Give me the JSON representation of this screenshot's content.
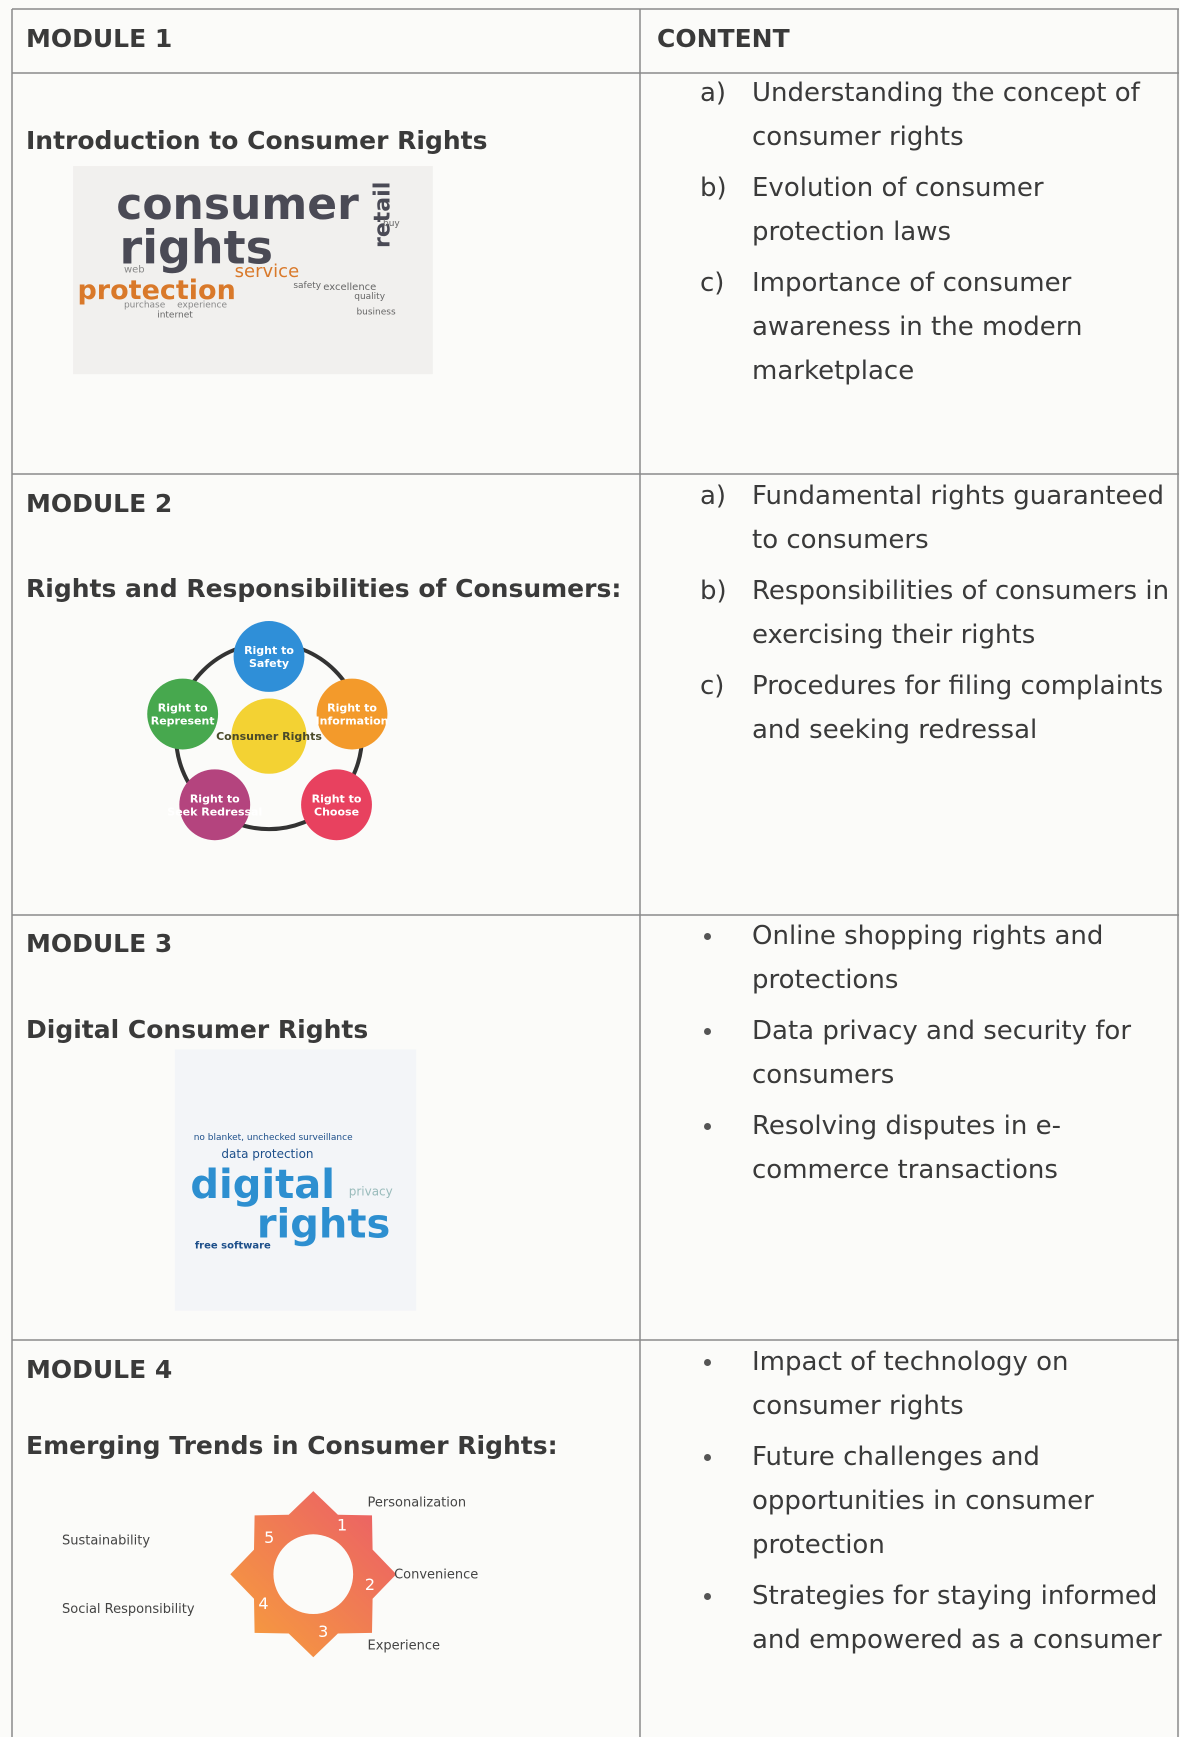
{
  "header": {
    "module": "MODULE 1",
    "content": "CONTENT"
  },
  "modules": [
    {
      "heading": "Introduction to Consumer Rights",
      "image_words": [
        "consumer",
        "rights",
        "protection",
        "service",
        "retail",
        "safety",
        "excellence",
        "quality",
        "business",
        "web",
        "purchase",
        "experience",
        "internet",
        "buy"
      ],
      "items": [
        {
          "marker": "a)",
          "text": "Understanding the concept of consumer rights"
        },
        {
          "marker": "b)",
          "text": "Evolution of consumer protection laws"
        },
        {
          "marker": "c)",
          "text": "Importance of consumer awareness in the modern marketplace"
        }
      ]
    },
    {
      "label": "MODULE 2",
      "heading": "Rights and Responsibilities of Consumers:",
      "diagram": {
        "center": "Consumer Rights",
        "nodes": [
          "Right to Safety",
          "Right to Information",
          "Right to Choose",
          "Right to Seek Redressal",
          "Right to Represent"
        ]
      },
      "items": [
        {
          "marker": "a)",
          "text": "Fundamental rights guaranteed to consumers"
        },
        {
          "marker": "b)",
          "text": "Responsibilities of consumers in exercising their rights"
        },
        {
          "marker": "c)",
          "text": "Procedures for filing complaints and seeking redressal"
        }
      ]
    },
    {
      "label": "MODULE 3",
      "heading": "Digital Consumer Rights",
      "image_words": [
        "no blanket, unchecked surveillance",
        "data protection",
        "digital",
        "privacy",
        "rights",
        "free software"
      ],
      "items": [
        {
          "text": "Online shopping rights and protections"
        },
        {
          "text": "Data privacy and security for consumers"
        },
        {
          "text": "Resolving disputes in e-commerce transactions"
        }
      ]
    },
    {
      "label": "MODULE 4",
      "heading": "Emerging Trends in Consumer Rights:",
      "diagram": {
        "labels": [
          "Personalization",
          "Convenience",
          "Experience",
          "Social Responsibility",
          "Sustainability"
        ],
        "numbers": [
          "1",
          "2",
          "3",
          "4",
          "5"
        ]
      },
      "items": [
        {
          "text": "Impact of technology on consumer rights"
        },
        {
          "text": "Future challenges and opportunities in consumer protection"
        },
        {
          "text": "Strategies for staying informed and empowered as a consumer"
        }
      ]
    }
  ]
}
